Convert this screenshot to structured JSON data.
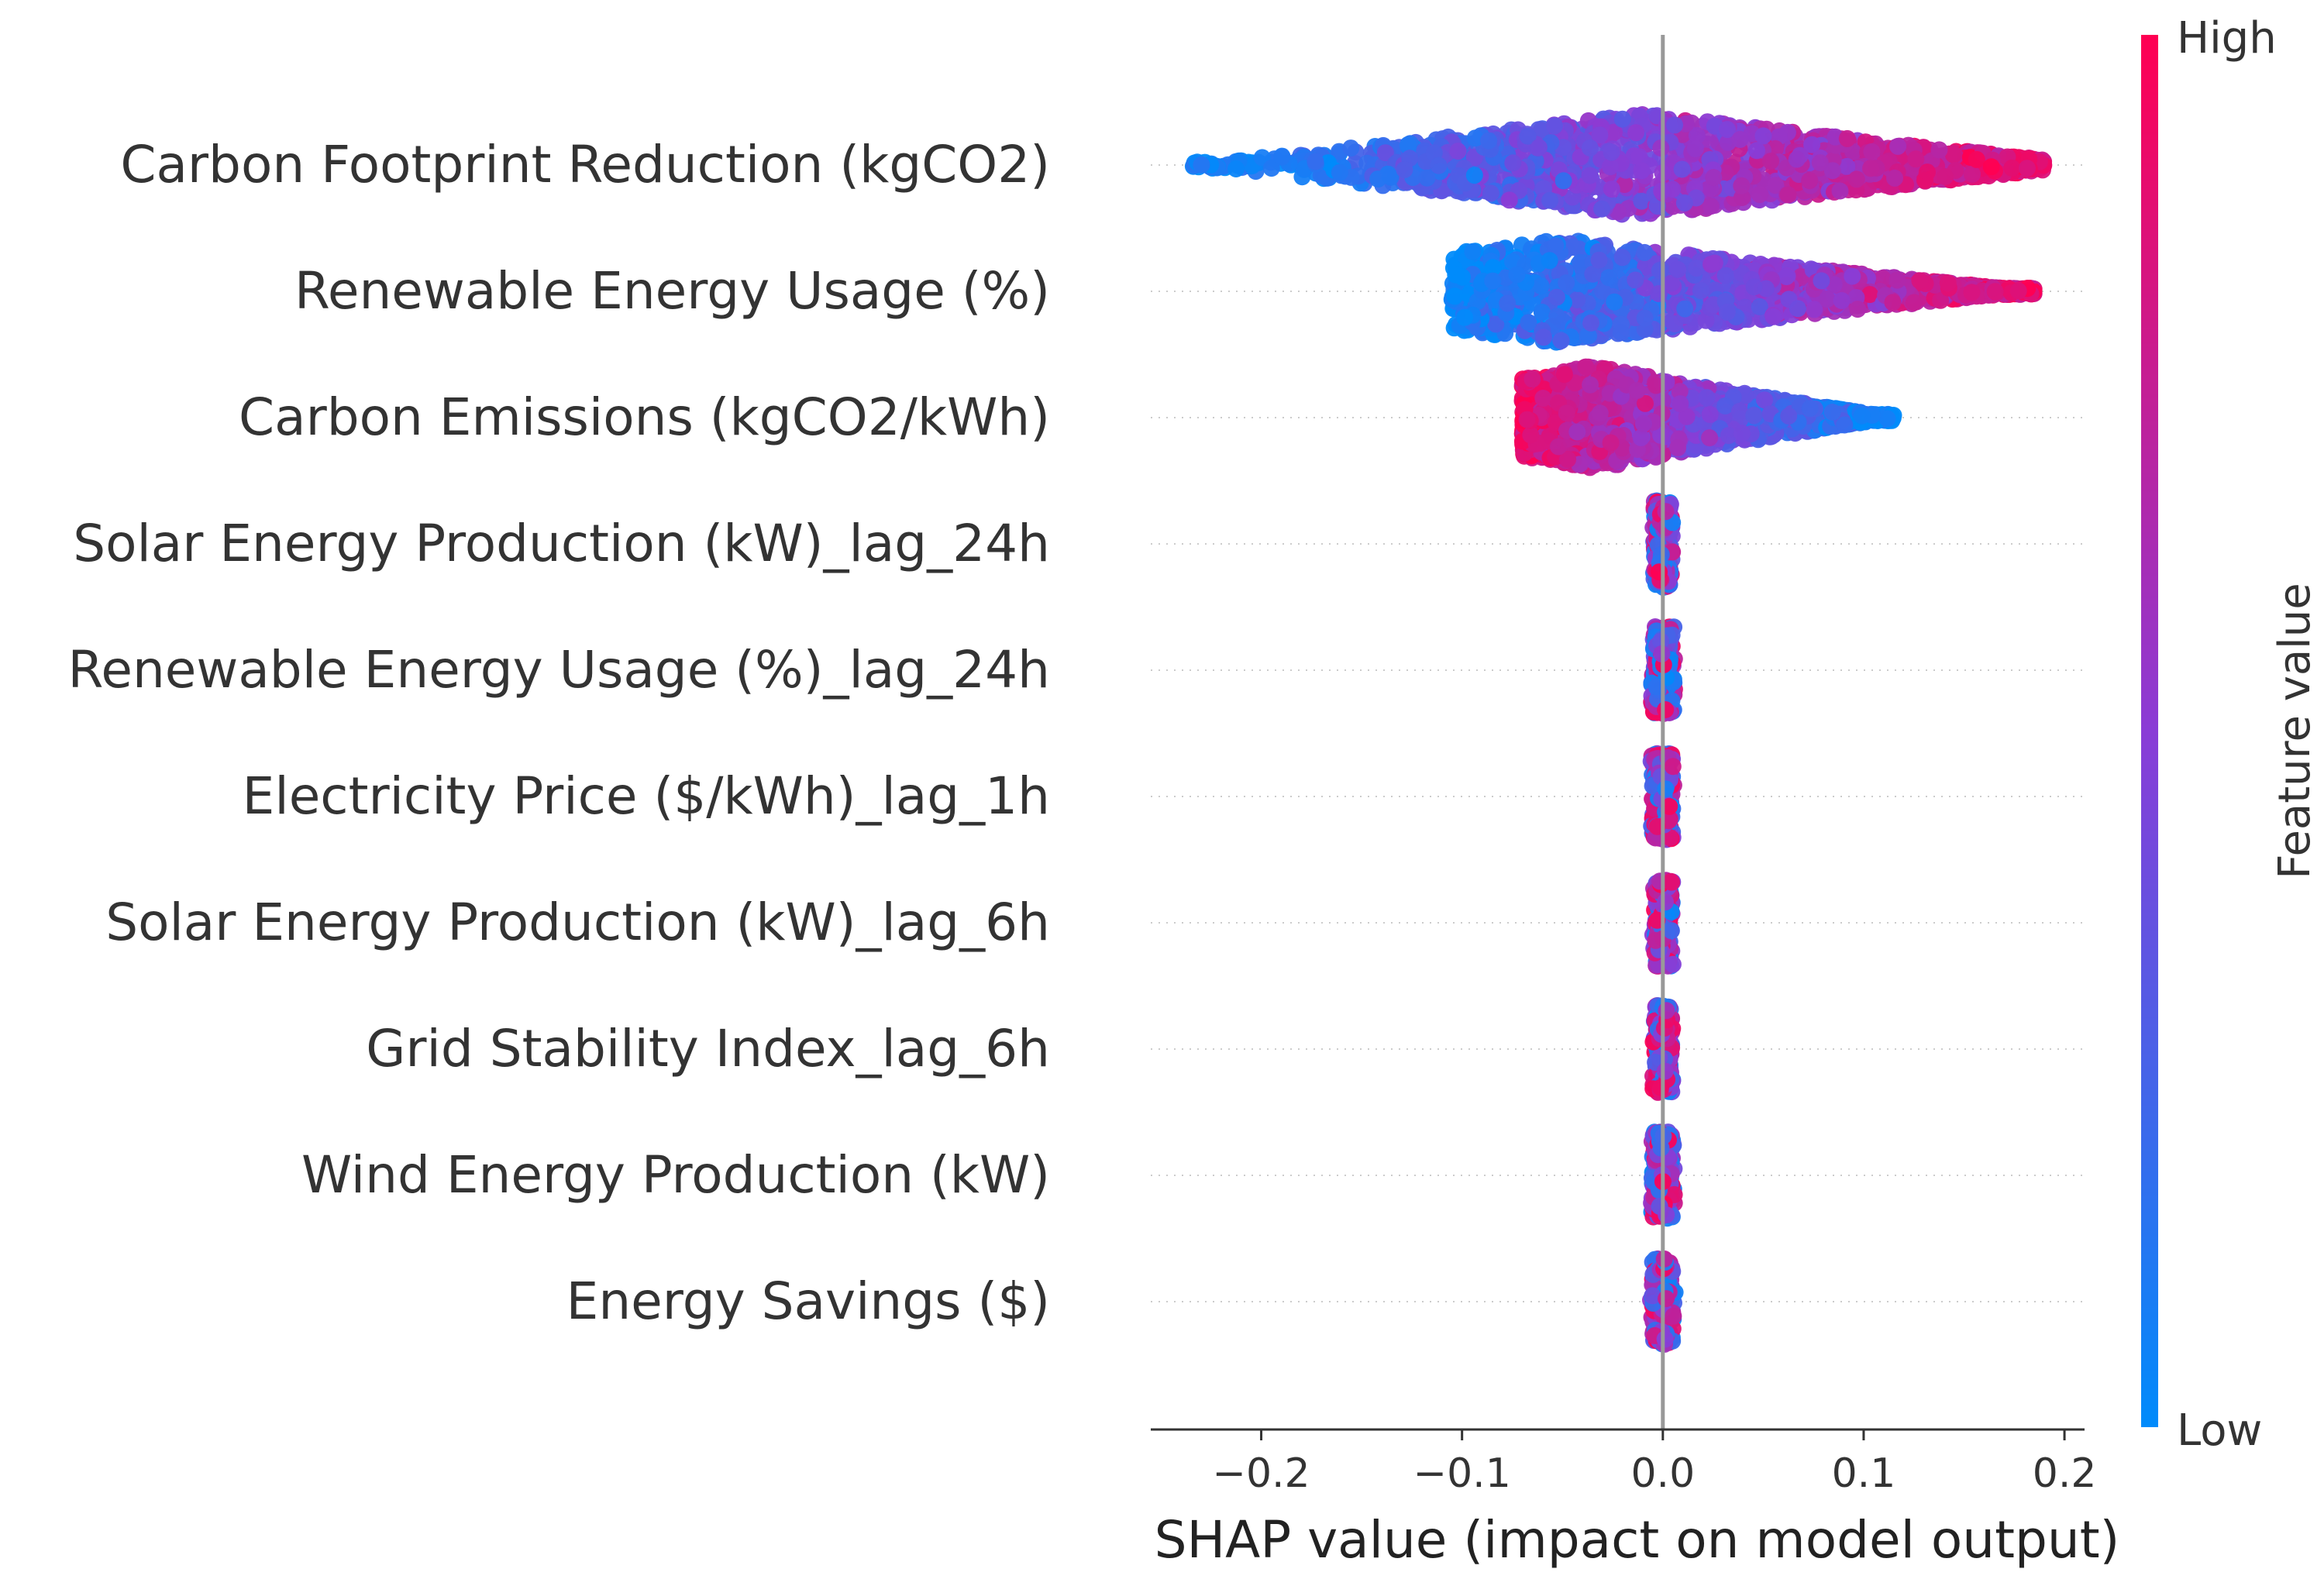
{
  "chart_data": {
    "type": "scatter",
    "subtype": "shap-beeswarm",
    "title": "",
    "xlabel": "SHAP value (impact on model output)",
    "ylabel": "",
    "xlim": [
      -0.255,
      0.21
    ],
    "x_ticks": [
      -0.2,
      -0.1,
      0.0,
      0.1,
      0.2
    ],
    "x_tick_labels": [
      "−0.2",
      "−0.1",
      "0.0",
      "0.1",
      "0.2"
    ],
    "features": [
      {
        "name": "Carbon Footprint Reduction (kgCO2)",
        "min": -0.235,
        "max": 0.19,
        "dense_min": -0.13,
        "dense_max": 0.17,
        "peak": -0.01,
        "spread": 0.038,
        "direction": "positive"
      },
      {
        "name": "Renewable Energy Usage (%)",
        "min": -0.105,
        "max": 0.185,
        "dense_min": -0.09,
        "dense_max": 0.17,
        "peak": -0.05,
        "spread": 0.05,
        "direction": "positive"
      },
      {
        "name": "Carbon Emissions (kgCO2/kWh)",
        "min": -0.07,
        "max": 0.115,
        "dense_min": -0.065,
        "dense_max": 0.1,
        "peak": -0.035,
        "spread": 0.05,
        "direction": "negative"
      },
      {
        "name": "Solar Energy Production (kW)_lag_24h",
        "min": -0.004,
        "max": 0.004,
        "dense_min": -0.003,
        "dense_max": 0.003,
        "peak": 0.0,
        "spread": 0.028,
        "direction": "mixed"
      },
      {
        "name": "Renewable Energy Usage (%)_lag_24h",
        "min": -0.005,
        "max": 0.005,
        "dense_min": -0.003,
        "dense_max": 0.003,
        "peak": 0.0,
        "spread": 0.028,
        "direction": "mixed"
      },
      {
        "name": "Electricity Price ($/kWh)_lag_1h",
        "min": -0.005,
        "max": 0.005,
        "dense_min": -0.003,
        "dense_max": 0.003,
        "peak": 0.0,
        "spread": 0.028,
        "direction": "mixed"
      },
      {
        "name": "Solar Energy Production (kW)_lag_6h",
        "min": -0.004,
        "max": 0.004,
        "dense_min": -0.003,
        "dense_max": 0.003,
        "peak": 0.0,
        "spread": 0.028,
        "direction": "mixed"
      },
      {
        "name": "Grid Stability Index_lag_6h",
        "min": -0.004,
        "max": 0.004,
        "dense_min": -0.003,
        "dense_max": 0.003,
        "peak": 0.0,
        "spread": 0.028,
        "direction": "mixed"
      },
      {
        "name": "Wind Energy Production (kW)",
        "min": -0.005,
        "max": 0.005,
        "dense_min": -0.003,
        "dense_max": 0.003,
        "peak": 0.0,
        "spread": 0.028,
        "direction": "mixed"
      },
      {
        "name": "Energy Savings ($)",
        "min": -0.005,
        "max": 0.005,
        "dense_min": -0.003,
        "dense_max": 0.003,
        "peak": 0.0,
        "spread": 0.028,
        "direction": "mixed"
      }
    ],
    "colorbar": {
      "title": "Feature value",
      "high_label": "High",
      "low_label": "Low",
      "color_high": "#ff0052",
      "color_mid": "#8a3cd6",
      "color_low": "#008bfb"
    },
    "zero_line_color": "#999999",
    "point_count_per_feature_hint": 1600
  }
}
